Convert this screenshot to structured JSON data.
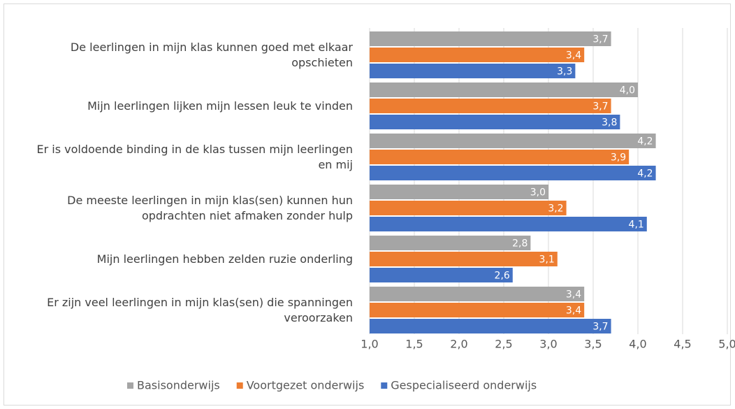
{
  "chart_data": {
    "type": "hbar",
    "categories": [
      "De leerlingen in mijn klas kunnen goed met elkaar opschieten",
      "Mijn leerlingen lijken mijn lessen leuk te vinden",
      "Er is voldoende binding in de klas tussen mijn leerlingen en mij",
      "De meeste leerlingen in mijn klas(sen) kunnen hun opdrachten niet afmaken zonder hulp",
      "Mijn leerlingen hebben zelden ruzie onderling",
      "Er zijn veel leerlingen in mijn klas(sen) die spanningen veroorzaken"
    ],
    "series": [
      {
        "name": "Basisonderwijs",
        "color": "#a5a5a5",
        "values": [
          3.7,
          4.0,
          4.2,
          3.0,
          2.8,
          3.4
        ],
        "value_labels": [
          "3,7",
          "4,0",
          "4,2",
          "3,0",
          "2,8",
          "3,4"
        ]
      },
      {
        "name": "Voortgezet onderwijs",
        "color": "#ed7d31",
        "values": [
          3.4,
          3.7,
          3.9,
          3.2,
          3.1,
          3.4
        ],
        "value_labels": [
          "3,4",
          "3,7",
          "3,9",
          "3,2",
          "3,1",
          "3,4"
        ]
      },
      {
        "name": "Gespecialiseerd onderwijs",
        "color": "#4472c4",
        "values": [
          3.3,
          3.8,
          4.2,
          4.1,
          2.6,
          3.7
        ],
        "value_labels": [
          "3,3",
          "3,8",
          "4,2",
          "4,1",
          "2,6",
          "3,7"
        ]
      }
    ],
    "xlim": [
      1.0,
      5.0
    ],
    "xticks": [
      {
        "value": 1.0,
        "label": "1,0"
      },
      {
        "value": 1.5,
        "label": "1,5"
      },
      {
        "value": 2.0,
        "label": "2,0"
      },
      {
        "value": 2.5,
        "label": "2,5"
      },
      {
        "value": 3.0,
        "label": "3,0"
      },
      {
        "value": 3.5,
        "label": "3,5"
      },
      {
        "value": 4.0,
        "label": "4,0"
      },
      {
        "value": 4.5,
        "label": "4,5"
      },
      {
        "value": 5.0,
        "label": "5,0"
      }
    ],
    "grid": true,
    "legend": "bottom"
  }
}
